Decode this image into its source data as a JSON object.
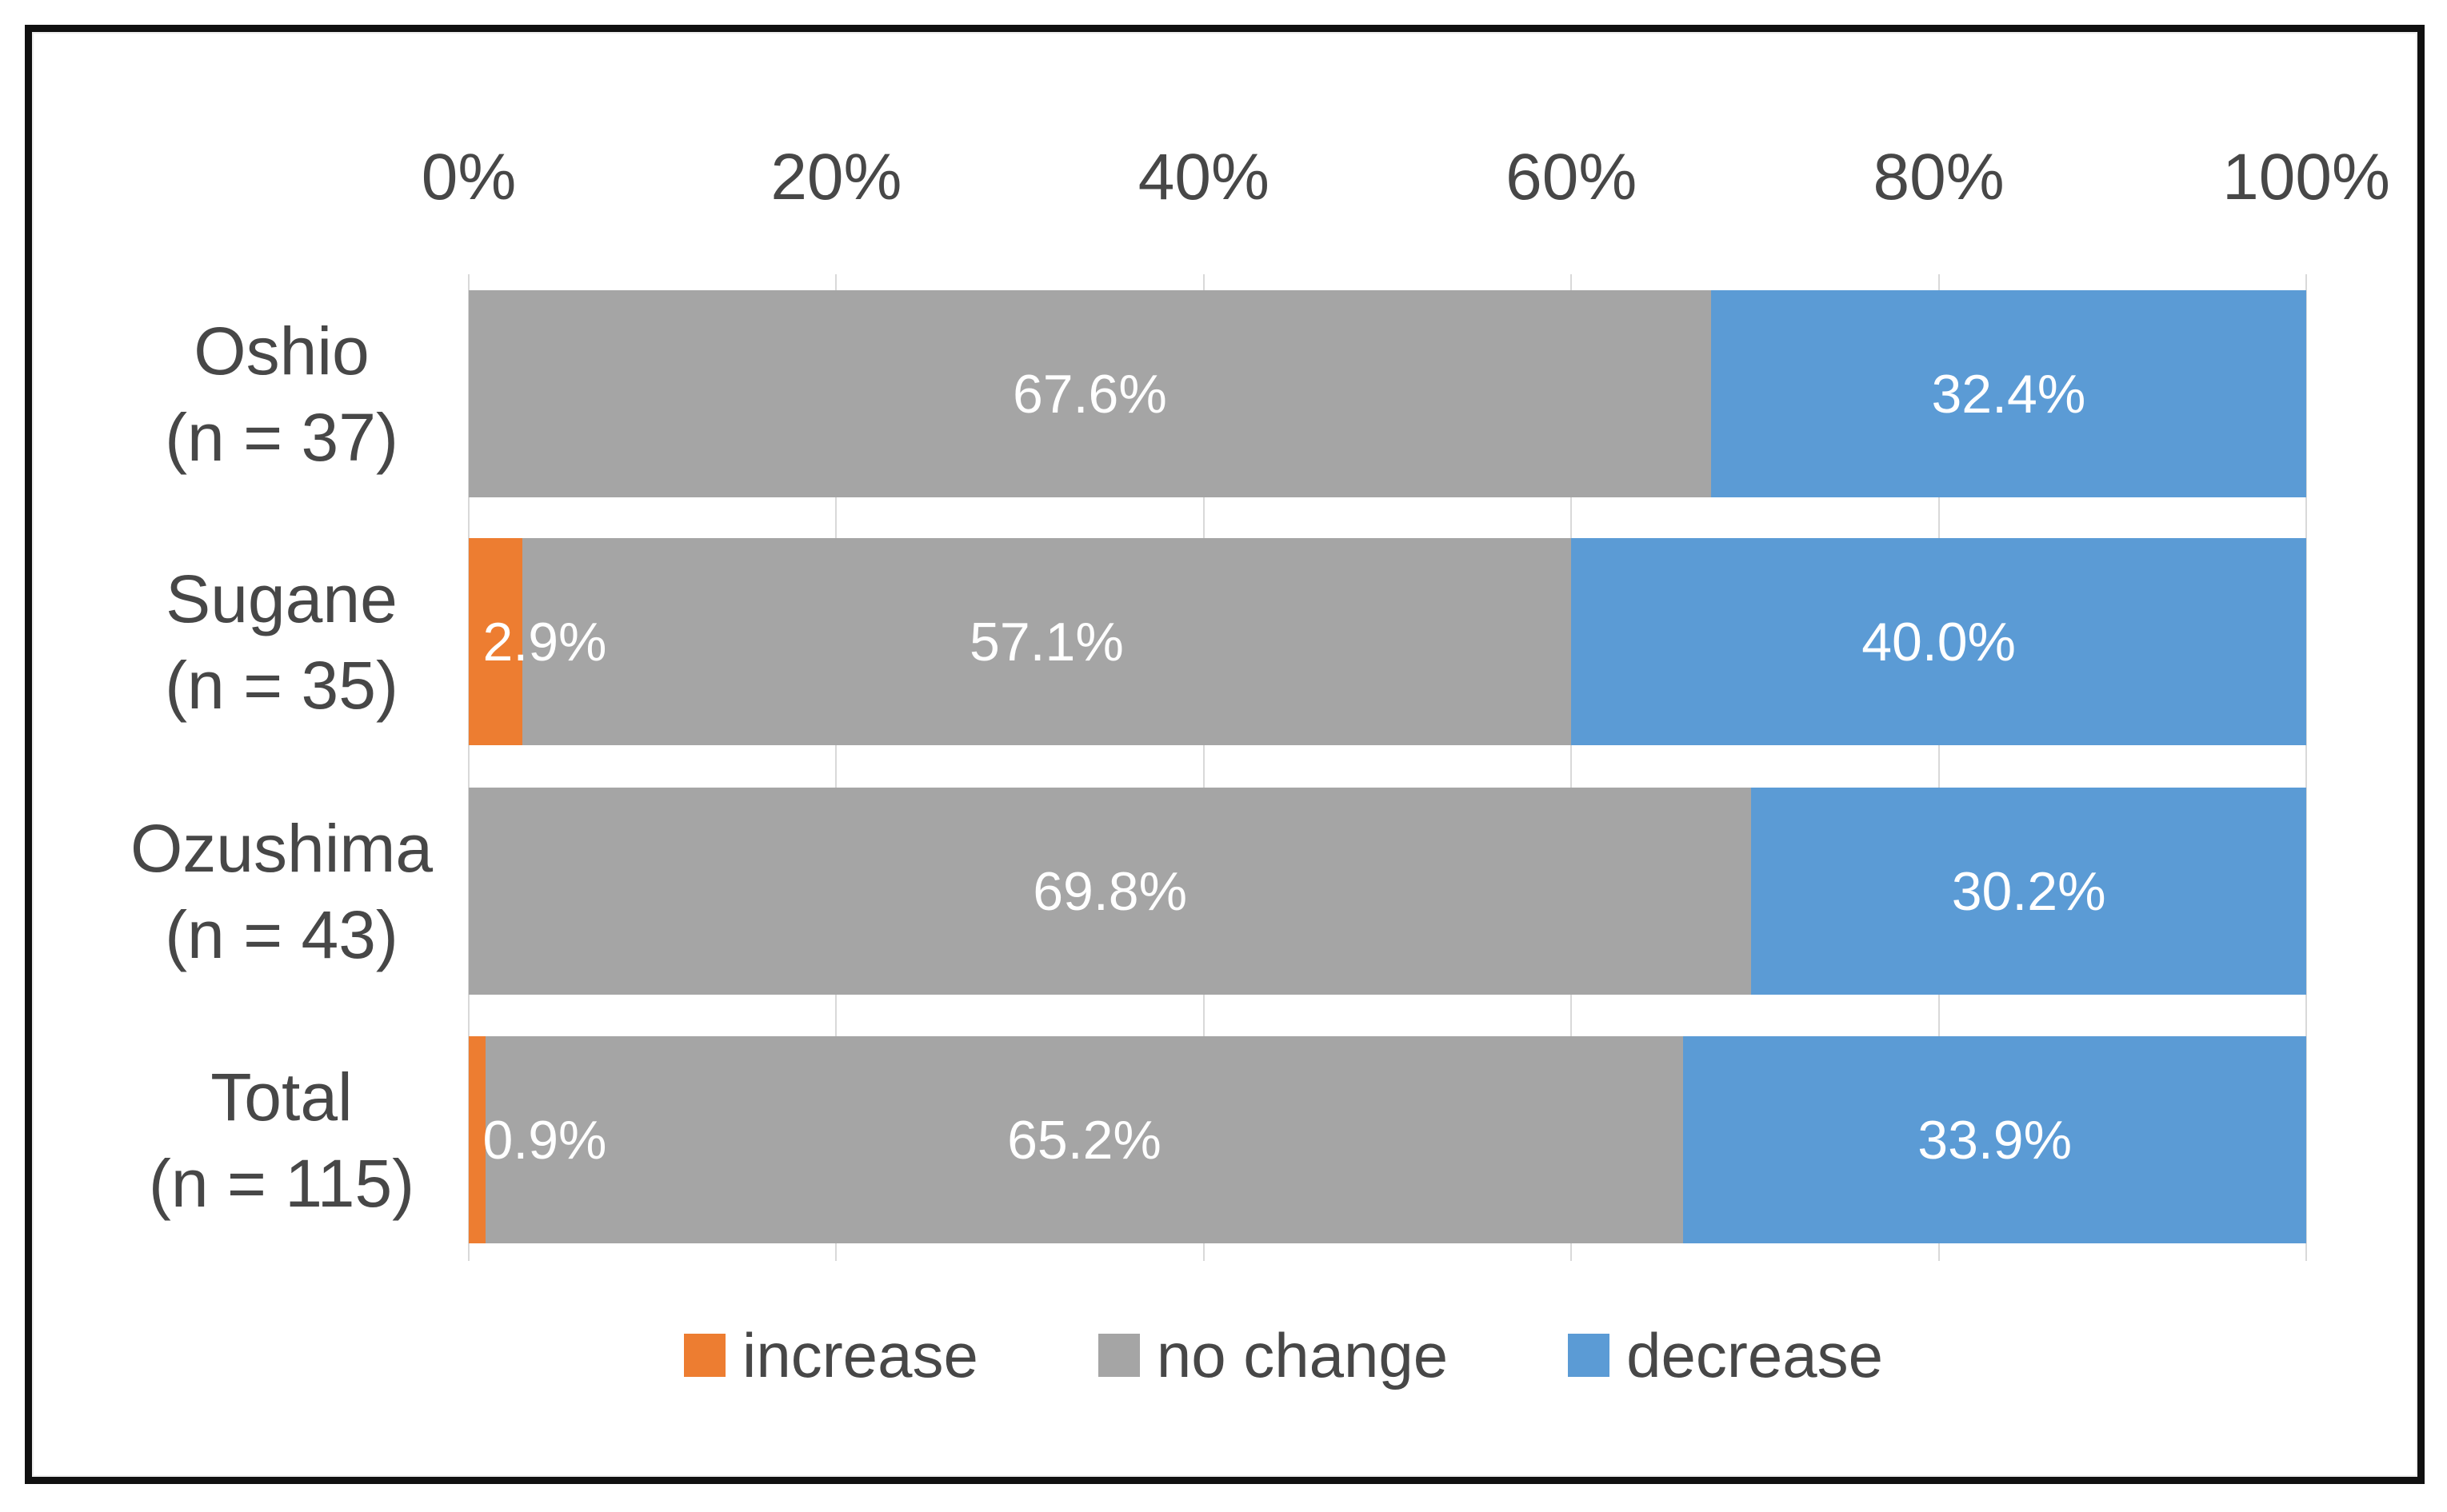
{
  "chart_data": {
    "type": "bar",
    "orientation": "horizontal",
    "stacked": true,
    "title": "",
    "x_axis": {
      "position": "top",
      "ticks": [
        "0%",
        "20%",
        "40%",
        "60%",
        "80%",
        "100%"
      ],
      "values": [
        0,
        20,
        40,
        60,
        80,
        100
      ],
      "range": [
        0,
        100
      ],
      "gridlines": true
    },
    "categories": [
      {
        "line1": "Oshio",
        "line2": "(n = 37)"
      },
      {
        "line1": "Sugane",
        "line2": "(n = 35)"
      },
      {
        "line1": "Ozushima",
        "line2": "(n = 43)"
      },
      {
        "line1": "Total",
        "line2": "(n = 115)"
      }
    ],
    "series": [
      {
        "name": "increase",
        "color": "#ED7D31",
        "values": [
          0,
          2.9,
          0,
          0.9
        ],
        "labels": [
          "",
          "2.9%",
          "",
          "0.9%"
        ]
      },
      {
        "name": "no change",
        "color": "#A5A5A5",
        "values": [
          67.6,
          57.1,
          69.8,
          65.2
        ],
        "labels": [
          "67.6%",
          "57.1%",
          "69.8%",
          "65.2%"
        ]
      },
      {
        "name": "decrease",
        "color": "#5B9BD5",
        "values": [
          32.4,
          40.0,
          30.2,
          33.9
        ],
        "labels": [
          "32.4%",
          "40.0%",
          "30.2%",
          "33.9%"
        ]
      }
    ],
    "legend_position": "bottom"
  },
  "style": {
    "background": "#FFFFFF",
    "frame_border_color": "#101010",
    "gridline_color": "#D9D9D9",
    "text_color": "#474747",
    "data_label_color": "#FFFFFF"
  }
}
